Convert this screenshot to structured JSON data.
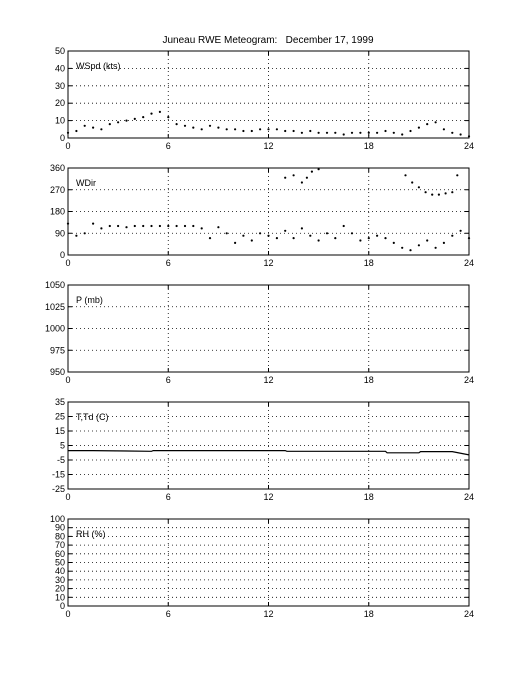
{
  "title": "Juneau RWE Meteogram:   December 17, 1999",
  "chart_data": [
    {
      "type": "scatter",
      "label": "WSpd (kts)",
      "xlim": [
        0,
        24
      ],
      "ylim": [
        0,
        50
      ],
      "xticks": [
        "0",
        "6",
        "12",
        "18",
        "24"
      ],
      "yticks": [
        "0",
        "10",
        "20",
        "30",
        "40",
        "50"
      ],
      "grid": true,
      "series": [
        {
          "style": "dots",
          "x": [
            0,
            0.5,
            1,
            1.5,
            2,
            2.5,
            3,
            3.5,
            4,
            4.5,
            5,
            5.5,
            6,
            6.5,
            7,
            7.5,
            8,
            8.5,
            9,
            9.5,
            10,
            10.5,
            11,
            11.5,
            12,
            12.5,
            13,
            13.5,
            14,
            14.5,
            15,
            15.5,
            16,
            16.5,
            17,
            17.5,
            18,
            18.5,
            19,
            19.5,
            20,
            20.5,
            21,
            21.5,
            22,
            22.5,
            23,
            23.5,
            24
          ],
          "y": [
            3,
            4,
            7,
            6,
            5,
            8,
            9,
            10,
            11,
            12,
            14,
            15,
            12,
            8,
            7,
            6,
            5,
            7,
            6,
            5,
            5,
            4,
            4,
            5,
            5,
            5,
            4,
            4,
            3,
            4,
            3,
            3,
            3,
            2,
            3,
            3,
            3,
            3,
            4,
            3,
            2,
            4,
            6,
            8,
            9,
            5,
            3,
            2,
            1
          ]
        }
      ]
    },
    {
      "type": "scatter",
      "label": "WDir",
      "xlim": [
        0,
        24
      ],
      "ylim": [
        0,
        360
      ],
      "xticks": [
        "0",
        "6",
        "12",
        "18",
        "24"
      ],
      "yticks": [
        "0",
        "90",
        "180",
        "270",
        "360"
      ],
      "grid": true,
      "series": [
        {
          "style": "dots",
          "x": [
            0,
            0.5,
            1,
            1.5,
            2,
            2.5,
            3,
            3.5,
            4,
            4.5,
            5,
            5.5,
            6,
            6.5,
            7,
            7.5,
            8,
            8.5,
            9,
            9.5,
            10,
            10.5,
            11,
            11.5,
            12,
            12.5,
            13,
            13.5,
            14,
            14.5,
            15,
            15.5,
            16,
            16.5,
            17,
            17.5,
            18,
            18.5,
            19,
            19.5,
            20,
            20.5,
            21,
            21.5,
            22,
            22.5,
            23,
            23.5,
            24
          ],
          "y": [
            130,
            80,
            90,
            130,
            110,
            120,
            120,
            115,
            120,
            120,
            120,
            120,
            120,
            120,
            120,
            120,
            110,
            70,
            115,
            90,
            50,
            80,
            60,
            90,
            80,
            70,
            100,
            70,
            110,
            80,
            60,
            90,
            70,
            120,
            90,
            60,
            70,
            80,
            70,
            50,
            30,
            20,
            40,
            60,
            30,
            50,
            80,
            100,
            70
          ]
        },
        {
          "style": "dots",
          "x": [
            13,
            13.5,
            14,
            14.3,
            14.6,
            15,
            20.2,
            20.6,
            21,
            21.4,
            21.8,
            22.2,
            22.6,
            23,
            23.3
          ],
          "y": [
            320,
            330,
            300,
            320,
            345,
            355,
            330,
            300,
            280,
            260,
            250,
            250,
            255,
            260,
            330
          ]
        }
      ]
    },
    {
      "type": "line",
      "label": "P (mb)",
      "xlim": [
        0,
        24
      ],
      "ylim": [
        950,
        1050
      ],
      "xticks": [
        "0",
        "6",
        "12",
        "18",
        "24"
      ],
      "yticks": [
        "950",
        "975",
        "1000",
        "1025",
        "1050"
      ],
      "grid": true,
      "series": []
    },
    {
      "type": "line",
      "label": "T,Td (C)",
      "xlim": [
        0,
        24
      ],
      "ylim": [
        -25,
        35
      ],
      "xticks": [
        "0",
        "6",
        "12",
        "18",
        "24"
      ],
      "yticks": [
        "-25",
        "-15",
        "-5",
        "5",
        "15",
        "25",
        "35"
      ],
      "grid": true,
      "series": [
        {
          "style": "line",
          "x": [
            0,
            1.5,
            5,
            5.1,
            13,
            13.1,
            19,
            19.1,
            21,
            21.1,
            23,
            24
          ],
          "y": [
            1.5,
            1.5,
            1.0,
            1.5,
            1.5,
            1.0,
            1.0,
            0.0,
            0.0,
            0.8,
            0.8,
            -1.5
          ]
        }
      ]
    },
    {
      "type": "line",
      "label": "RH (%)",
      "xlim": [
        0,
        24
      ],
      "ylim": [
        0,
        100
      ],
      "xticks": [
        "0",
        "6",
        "12",
        "18",
        "24"
      ],
      "yticks": [
        "0",
        "10",
        "20",
        "30",
        "40",
        "50",
        "60",
        "70",
        "80",
        "90",
        "100"
      ],
      "grid": true,
      "series": []
    }
  ]
}
